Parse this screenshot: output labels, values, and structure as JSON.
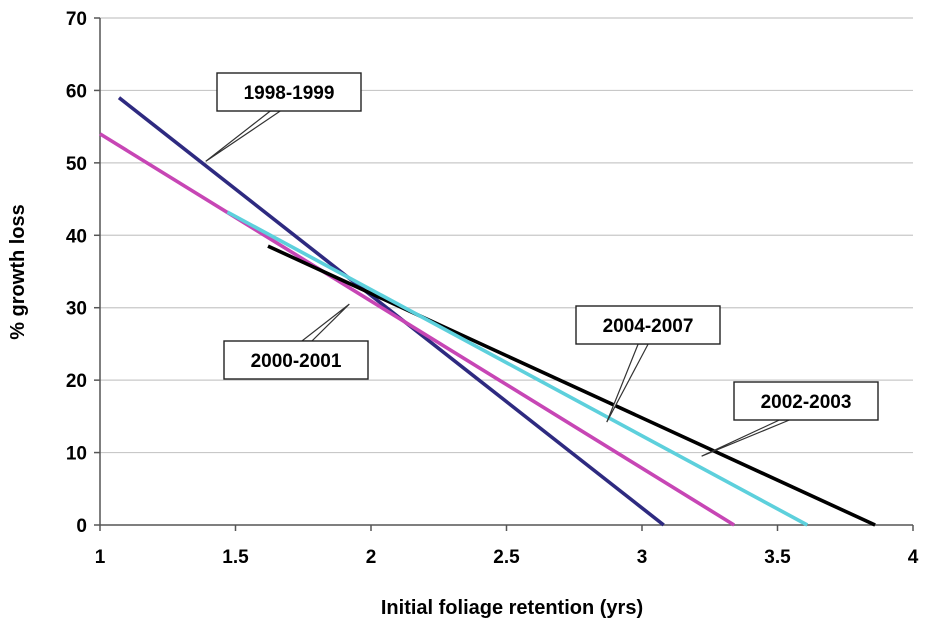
{
  "chart_data": {
    "type": "line",
    "title": "",
    "xlabel": "Initial foliage retention (yrs)",
    "ylabel": "% growth loss",
    "xlim": [
      1,
      4
    ],
    "ylim": [
      0,
      70
    ],
    "xticks": [
      1,
      1.5,
      2,
      2.5,
      3,
      3.5,
      4
    ],
    "xtick_labels": [
      "1",
      "1.5",
      "2",
      "2.5",
      "3",
      "3.5",
      "4"
    ],
    "yticks": [
      0,
      10,
      20,
      30,
      40,
      50,
      60,
      70
    ],
    "ytick_labels": [
      "0",
      "10",
      "20",
      "30",
      "40",
      "50",
      "60",
      "70"
    ],
    "grid": {
      "horizontal": true,
      "vertical": false
    },
    "legend": "none (series identified by callout labels)",
    "series": [
      {
        "name": "1998-1999",
        "color": "#2e2a80",
        "x": [
          1.07,
          3.08
        ],
        "y": [
          59,
          0
        ]
      },
      {
        "name": "2000-2001",
        "color": "#c746b5",
        "x": [
          1.0,
          3.34
        ],
        "y": [
          54,
          0
        ]
      },
      {
        "name": "2002-2003",
        "color": "#000000",
        "x": [
          1.62,
          3.86
        ],
        "y": [
          38.5,
          0
        ]
      },
      {
        "name": "2004-2007",
        "color": "#5dd0dc",
        "x": [
          1.47,
          3.61
        ],
        "y": [
          43.2,
          0
        ]
      }
    ],
    "callouts": [
      {
        "series": "1998-1999",
        "text": "1998-1999",
        "point": [
          1.39,
          50.2
        ]
      },
      {
        "series": "2000-2001",
        "text": "2000-2001",
        "point": [
          1.92,
          30.5
        ]
      },
      {
        "series": "2004-2007",
        "text": "2004-2007",
        "point": [
          2.87,
          14.2
        ]
      },
      {
        "series": "2002-2003",
        "text": "2002-2003",
        "point": [
          3.22,
          9.5
        ]
      }
    ]
  }
}
